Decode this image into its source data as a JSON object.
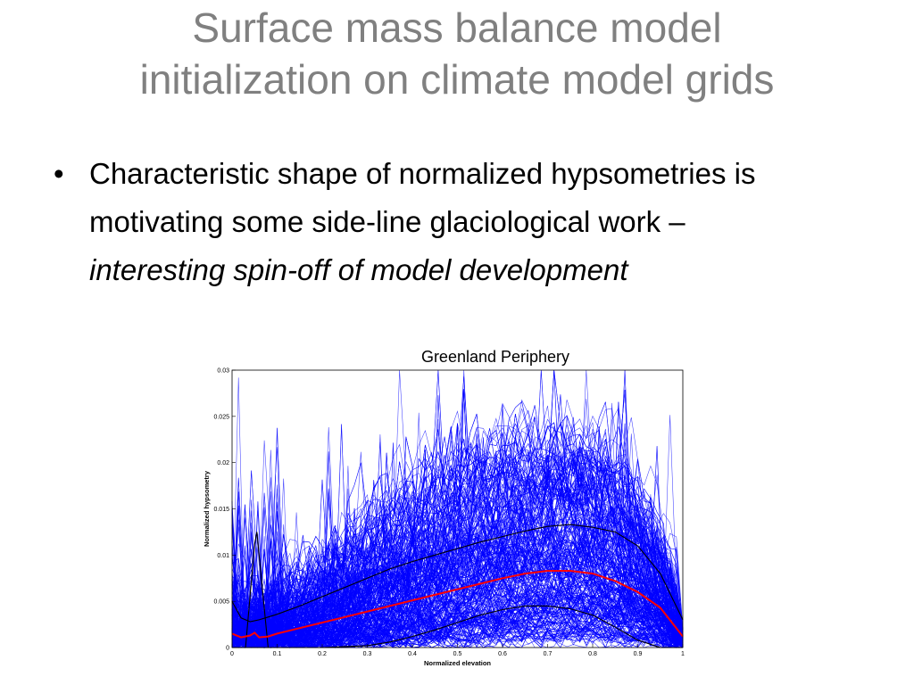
{
  "slide": {
    "title_line1": "Surface mass balance model",
    "title_line2": "initialization on climate model grids",
    "bullet_marker": "•",
    "bullet_text": "Characteristic shape of normalized hypsometries is motivating some side-line glaciological work – ",
    "bullet_emphasis": "interesting spin-off of model development"
  },
  "colors": {
    "title": "#808080",
    "glacier_lines": "#0000ff",
    "mean_line": "#ff0000",
    "envelope_lines": "#000000"
  },
  "chart_data": {
    "type": "line",
    "title": "Greenland Periphery",
    "xlabel": "Normalized elevation",
    "ylabel": "Normalized hypsometry",
    "xlim": [
      0,
      1
    ],
    "ylim": [
      0,
      0.03
    ],
    "xticks": [
      "0",
      "0.1",
      "0.2",
      "0.3",
      "0.4",
      "0.5",
      "0.6",
      "0.7",
      "0.8",
      "0.9",
      "1"
    ],
    "yticks": [
      "0",
      "0.005",
      "0.01",
      "0.015",
      "0.02",
      "0.025",
      "0.03"
    ],
    "grid": false,
    "series": [
      {
        "role": "mean",
        "color": "#ff0000",
        "x": [
          0.0,
          0.02,
          0.04,
          0.05,
          0.06,
          0.08,
          0.1,
          0.15,
          0.2,
          0.25,
          0.3,
          0.35,
          0.4,
          0.45,
          0.5,
          0.55,
          0.6,
          0.65,
          0.7,
          0.75,
          0.8,
          0.85,
          0.9,
          0.95,
          1.0
        ],
        "y": [
          0.0015,
          0.0011,
          0.0013,
          0.0016,
          0.0011,
          0.0012,
          0.0015,
          0.0021,
          0.0027,
          0.0033,
          0.0039,
          0.0045,
          0.0051,
          0.0057,
          0.0063,
          0.0069,
          0.0075,
          0.008,
          0.0083,
          0.0083,
          0.008,
          0.0072,
          0.006,
          0.0043,
          0.0012
        ]
      },
      {
        "role": "upper-envelope",
        "color": "#000000",
        "x": [
          0.0,
          0.02,
          0.04,
          0.06,
          0.08,
          0.1,
          0.15,
          0.2,
          0.25,
          0.3,
          0.35,
          0.4,
          0.45,
          0.5,
          0.55,
          0.6,
          0.65,
          0.7,
          0.75,
          0.8,
          0.85,
          0.9,
          0.95,
          1.0
        ],
        "y": [
          0.005,
          0.0032,
          0.0028,
          0.003,
          0.0033,
          0.0036,
          0.0045,
          0.0055,
          0.0065,
          0.0075,
          0.0085,
          0.0093,
          0.01,
          0.0107,
          0.0114,
          0.012,
          0.0126,
          0.0131,
          0.0133,
          0.013,
          0.0125,
          0.011,
          0.008,
          0.003
        ]
      },
      {
        "role": "lower-envelope",
        "color": "#000000",
        "x": [
          0.0,
          0.1,
          0.2,
          0.3,
          0.35,
          0.4,
          0.45,
          0.5,
          0.55,
          0.6,
          0.65,
          0.7,
          0.75,
          0.8,
          0.85,
          0.9,
          0.95,
          1.0
        ],
        "y": [
          0.0,
          0.0,
          0.0,
          0.0002,
          0.0006,
          0.0012,
          0.0019,
          0.0027,
          0.0035,
          0.0041,
          0.0045,
          0.0045,
          0.0042,
          0.0035,
          0.0022,
          0.0008,
          0.0,
          0.0
        ]
      },
      {
        "role": "outlier",
        "color": "#000000",
        "x": [
          0.0,
          0.01,
          0.03,
          0.05,
          0.055,
          0.06,
          0.07,
          0.08
        ],
        "y": [
          0.0,
          0.0,
          0.0,
          0.0112,
          0.0125,
          0.01,
          0.005,
          0.0
        ]
      }
    ],
    "annotations": [
      "Dense bundle of several hundred blue normalized-hypsometry curves (individual glaciers), spread roughly between 0 and 0.03"
    ]
  }
}
